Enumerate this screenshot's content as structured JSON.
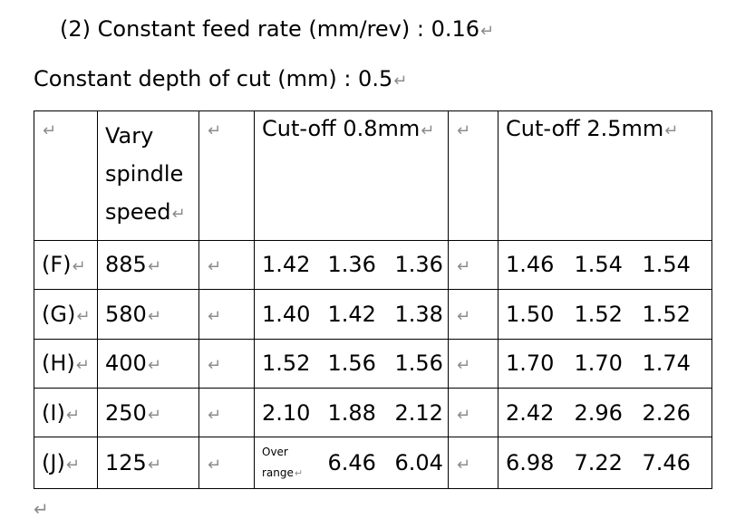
{
  "heading": {
    "feed_rate": "(2)   Constant feed rate (mm/rev) : 0.16",
    "depth_of_cut": "Constant depth of cut (mm)    : 0.5"
  },
  "table": {
    "header": {
      "col1": "Vary spindle speed",
      "cutoff_08": "Cut-off 0.8mm",
      "cutoff_25": "Cut-off 2.5mm"
    },
    "rows": [
      {
        "label": "(F)",
        "speed": "885",
        "c08": [
          "1.42",
          "1.36",
          "1.36"
        ],
        "c25": [
          "1.46",
          "1.54",
          "1.54"
        ]
      },
      {
        "label": "(G)",
        "speed": "580",
        "c08": [
          "1.40",
          "1.42",
          "1.38"
        ],
        "c25": [
          "1.50",
          "1.52",
          "1.52"
        ]
      },
      {
        "label": "(H)",
        "speed": "400",
        "c08": [
          "1.52",
          "1.56",
          "1.56"
        ],
        "c25": [
          "1.70",
          "1.70",
          "1.74"
        ]
      },
      {
        "label": "(I)",
        "speed": "250",
        "c08": [
          "2.10",
          "1.88",
          "2.12"
        ],
        "c25": [
          "2.42",
          "2.96",
          "2.26"
        ]
      },
      {
        "label": "(J)",
        "speed": "125",
        "c08": [
          "Over range",
          "6.46",
          "6.04"
        ],
        "c25": [
          "6.98",
          "7.22",
          "7.46"
        ]
      }
    ]
  },
  "colors": {
    "text": "#000000",
    "paragraph_mark": "#8c8c8c",
    "border": "#000000"
  }
}
